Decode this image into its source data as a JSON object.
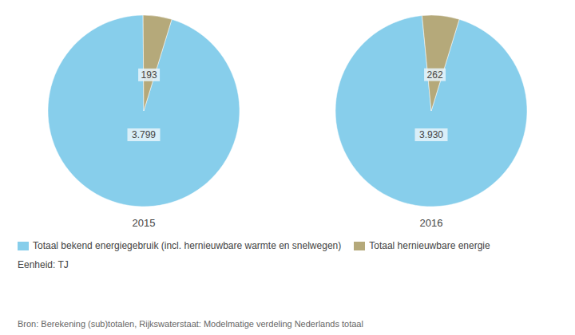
{
  "chart_data": [
    {
      "type": "pie",
      "title": "2015",
      "categories": [
        "Totaal bekend energiegebruik (incl. hernieuwbare warmte en snelwegen)",
        "Totaal hernieuwbare energie"
      ],
      "values": [
        3799,
        193
      ],
      "value_labels": [
        "3.799",
        "193"
      ],
      "colors": [
        "#87CEEB",
        "#B5A97A"
      ],
      "data_labels": true,
      "legend": "bottom"
    },
    {
      "type": "pie",
      "title": "2016",
      "categories": [
        "Totaal bekend energiegebruik (incl. hernieuwbare warmte en snelwegen)",
        "Totaal hernieuwbare energie"
      ],
      "values": [
        3930,
        262
      ],
      "value_labels": [
        "3.930",
        "262"
      ],
      "colors": [
        "#87CEEB",
        "#B5A97A"
      ],
      "data_labels": true,
      "legend": "bottom"
    }
  ],
  "annotations": [
    "Eenheid: TJ",
    "Bron: Berekening (sub)totalen, Rijkswaterstaat: Modelmatige verdeling Nederlands totaal"
  ]
}
